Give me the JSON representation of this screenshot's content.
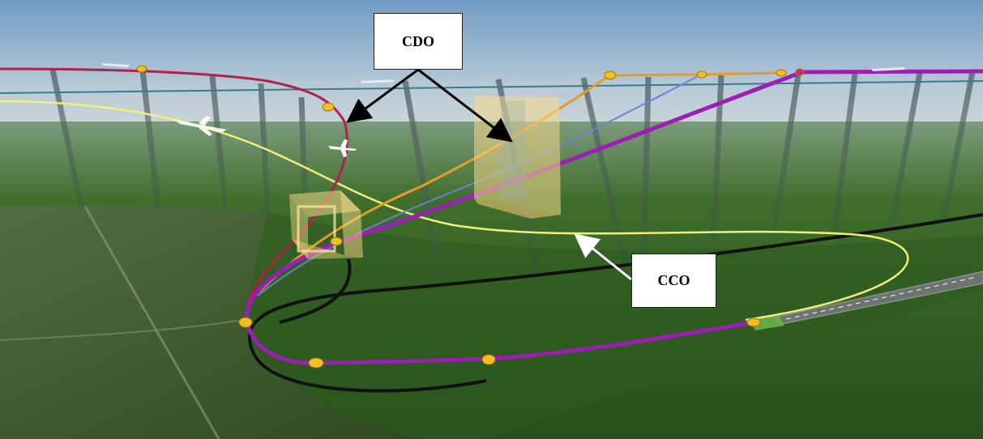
{
  "labels": {
    "cdo": "CDO",
    "cco": "CCO"
  },
  "colors": {
    "sky_top": "#7fa6c9",
    "horizon": "#c7d3d3",
    "field": "#2f5e1e",
    "forest": "#3d5a2a",
    "cdo_path": "#b0224a",
    "cco_path": "#f0f07a",
    "approach_path": "#9b1fb5",
    "ground_track": "#111111",
    "alt_path_orange": "#e89a2a",
    "alt_path_blue": "#6f7fd6",
    "altitude_window": "#f5d98a",
    "waypoint": "#f0c020",
    "arrow_black": "#000000",
    "arrow_white": "#ffffff"
  },
  "icons": [
    "aircraft-icon",
    "waypoint-marker-icon",
    "runway-icon"
  ]
}
